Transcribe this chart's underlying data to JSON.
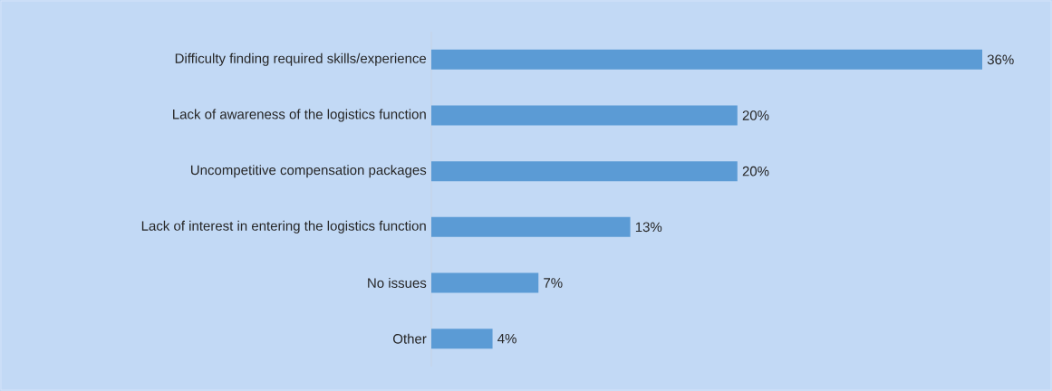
{
  "chart_data": {
    "type": "bar",
    "orientation": "horizontal",
    "categories": [
      "Difficulty finding required skills/experience",
      "Lack of awareness of the logistics function",
      "Uncompetitive compensation packages",
      "Lack of interest in entering the logistics function",
      "No issues",
      "Other"
    ],
    "values": [
      36,
      20,
      20,
      13,
      7,
      4
    ],
    "value_labels": [
      "36%",
      "20%",
      "20%",
      "13%",
      "7%",
      "4%"
    ],
    "color": "#5b9bd5"
  }
}
